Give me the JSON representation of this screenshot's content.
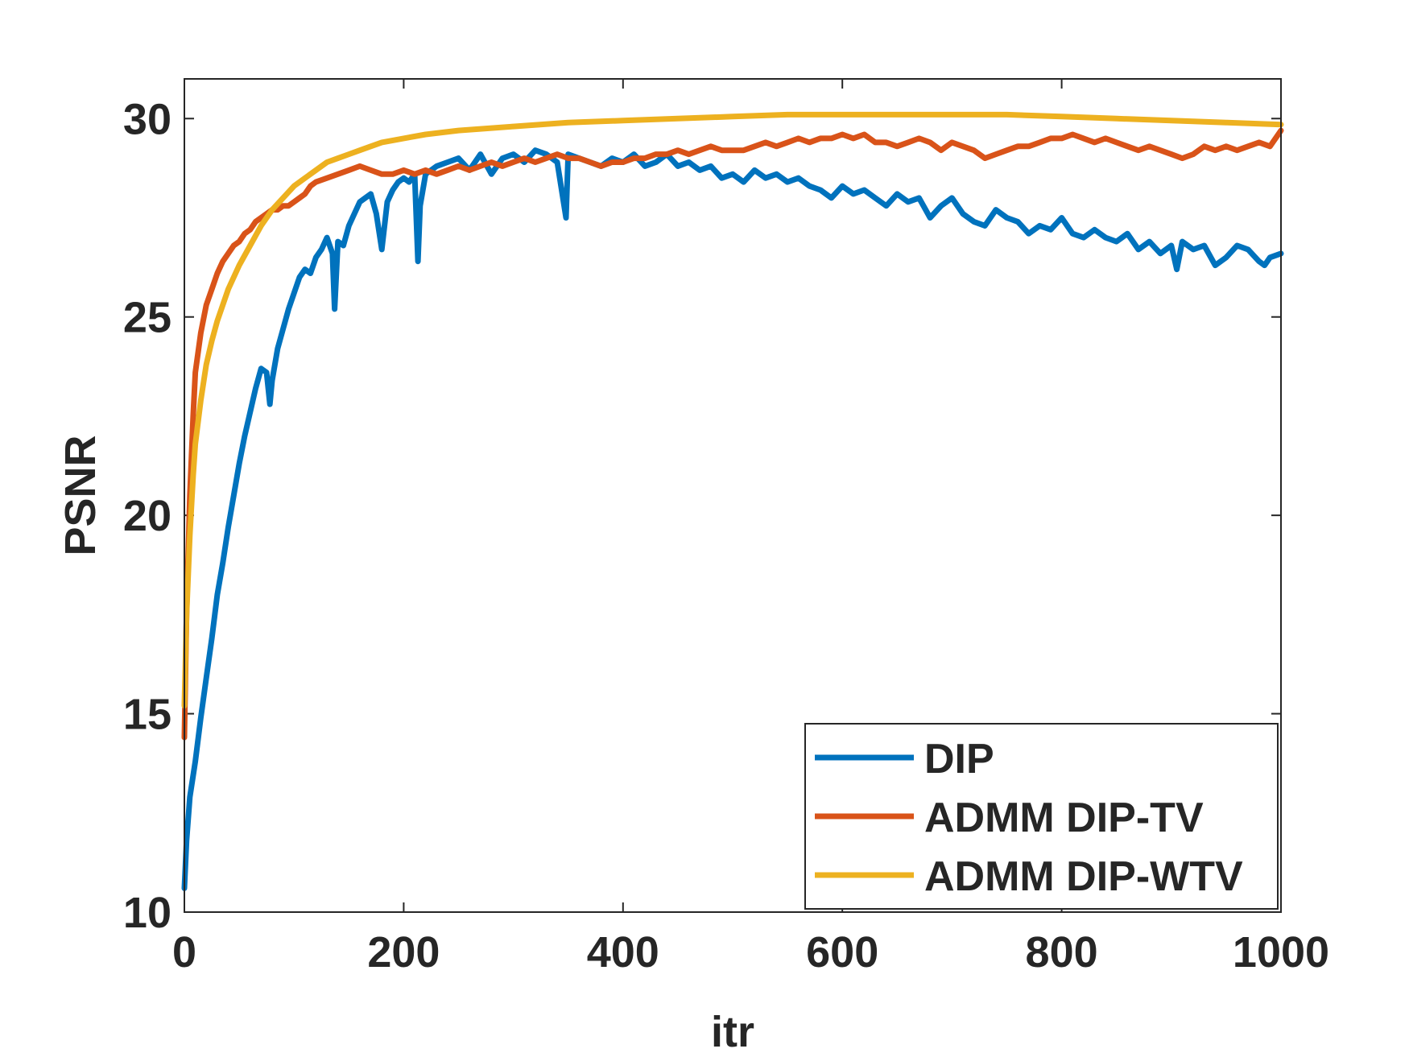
{
  "chart_data": {
    "type": "line",
    "title": "",
    "xlabel": "itr",
    "ylabel": "PSNR",
    "xlim": [
      0,
      1000
    ],
    "ylim": [
      10,
      31
    ],
    "xticks": [
      0,
      200,
      400,
      600,
      800,
      1000
    ],
    "xtick_labels": [
      "0",
      "200",
      "400",
      "600",
      "800",
      "1000"
    ],
    "yticks": [
      10,
      15,
      20,
      25,
      30
    ],
    "ytick_labels": [
      "10",
      "15",
      "20",
      "25",
      "30"
    ],
    "grid": false,
    "legend_position": "bottom-right",
    "series": [
      {
        "name": "DIP",
        "color": "#0072BD",
        "x": [
          0,
          2,
          5,
          10,
          15,
          20,
          25,
          30,
          35,
          40,
          45,
          50,
          55,
          60,
          65,
          70,
          75,
          78,
          80,
          85,
          90,
          95,
          100,
          105,
          110,
          115,
          120,
          125,
          130,
          135,
          137,
          140,
          145,
          150,
          155,
          160,
          165,
          170,
          175,
          180,
          185,
          190,
          195,
          200,
          205,
          210,
          213,
          215,
          220,
          225,
          230,
          240,
          250,
          260,
          270,
          280,
          290,
          300,
          310,
          320,
          330,
          340,
          348,
          350,
          360,
          370,
          380,
          390,
          400,
          410,
          420,
          430,
          440,
          450,
          460,
          470,
          480,
          490,
          500,
          510,
          520,
          530,
          540,
          550,
          560,
          570,
          580,
          590,
          600,
          610,
          620,
          630,
          640,
          650,
          660,
          670,
          680,
          690,
          700,
          710,
          720,
          730,
          740,
          750,
          760,
          770,
          780,
          790,
          800,
          810,
          820,
          830,
          840,
          850,
          860,
          870,
          880,
          890,
          900,
          905,
          910,
          920,
          930,
          940,
          950,
          960,
          970,
          980,
          985,
          990,
          1000
        ],
        "y": [
          10.6,
          11.8,
          12.9,
          13.8,
          14.9,
          15.9,
          16.9,
          18.0,
          18.8,
          19.7,
          20.5,
          21.3,
          22.0,
          22.6,
          23.2,
          23.7,
          23.6,
          22.8,
          23.4,
          24.2,
          24.7,
          25.2,
          25.6,
          26.0,
          26.2,
          26.1,
          26.5,
          26.7,
          27.0,
          26.6,
          25.2,
          26.9,
          26.8,
          27.3,
          27.6,
          27.9,
          28.0,
          28.1,
          27.6,
          26.7,
          27.9,
          28.2,
          28.4,
          28.5,
          28.4,
          28.6,
          26.4,
          27.8,
          28.6,
          28.7,
          28.8,
          28.9,
          29.0,
          28.7,
          29.1,
          28.6,
          29.0,
          29.1,
          28.9,
          29.2,
          29.1,
          28.9,
          27.5,
          29.1,
          29.0,
          28.9,
          28.8,
          29.0,
          28.9,
          29.1,
          28.8,
          28.9,
          29.1,
          28.8,
          28.9,
          28.7,
          28.8,
          28.5,
          28.6,
          28.4,
          28.7,
          28.5,
          28.6,
          28.4,
          28.5,
          28.3,
          28.2,
          28.0,
          28.3,
          28.1,
          28.2,
          28.0,
          27.8,
          28.1,
          27.9,
          28.0,
          27.5,
          27.8,
          28.0,
          27.6,
          27.4,
          27.3,
          27.7,
          27.5,
          27.4,
          27.1,
          27.3,
          27.2,
          27.5,
          27.1,
          27.0,
          27.2,
          27.0,
          26.9,
          27.1,
          26.7,
          26.9,
          26.6,
          26.8,
          26.2,
          26.9,
          26.7,
          26.8,
          26.3,
          26.5,
          26.8,
          26.7,
          26.4,
          26.3,
          26.5,
          26.6
        ]
      },
      {
        "name": "ADMM DIP-TV",
        "color": "#D95319",
        "x": [
          0,
          2,
          5,
          8,
          10,
          15,
          20,
          25,
          30,
          35,
          40,
          45,
          50,
          55,
          60,
          65,
          70,
          75,
          80,
          85,
          90,
          95,
          100,
          105,
          110,
          115,
          120,
          130,
          140,
          150,
          160,
          170,
          180,
          190,
          200,
          210,
          220,
          230,
          240,
          250,
          260,
          270,
          280,
          290,
          300,
          310,
          320,
          330,
          340,
          350,
          360,
          370,
          380,
          390,
          400,
          410,
          420,
          430,
          440,
          450,
          460,
          470,
          480,
          490,
          500,
          510,
          520,
          530,
          540,
          550,
          560,
          570,
          580,
          590,
          600,
          610,
          620,
          630,
          640,
          650,
          660,
          670,
          680,
          690,
          700,
          710,
          720,
          730,
          740,
          750,
          760,
          770,
          780,
          790,
          800,
          810,
          820,
          830,
          840,
          850,
          860,
          870,
          880,
          890,
          900,
          910,
          920,
          930,
          940,
          950,
          960,
          970,
          980,
          990,
          1000
        ],
        "y": [
          14.4,
          17.5,
          20.5,
          22.5,
          23.6,
          24.6,
          25.3,
          25.7,
          26.1,
          26.4,
          26.6,
          26.8,
          26.9,
          27.1,
          27.2,
          27.4,
          27.5,
          27.6,
          27.7,
          27.7,
          27.8,
          27.8,
          27.9,
          28.0,
          28.1,
          28.3,
          28.4,
          28.5,
          28.6,
          28.7,
          28.8,
          28.7,
          28.6,
          28.6,
          28.7,
          28.6,
          28.7,
          28.6,
          28.7,
          28.8,
          28.7,
          28.8,
          28.9,
          28.8,
          28.9,
          29.0,
          28.9,
          29.0,
          29.1,
          29.0,
          29.0,
          28.9,
          28.8,
          28.9,
          28.9,
          29.0,
          29.0,
          29.1,
          29.1,
          29.2,
          29.1,
          29.2,
          29.3,
          29.2,
          29.2,
          29.2,
          29.3,
          29.4,
          29.3,
          29.4,
          29.5,
          29.4,
          29.5,
          29.5,
          29.6,
          29.5,
          29.6,
          29.4,
          29.4,
          29.3,
          29.4,
          29.5,
          29.4,
          29.2,
          29.4,
          29.3,
          29.2,
          29.0,
          29.1,
          29.2,
          29.3,
          29.3,
          29.4,
          29.5,
          29.5,
          29.6,
          29.5,
          29.4,
          29.5,
          29.4,
          29.3,
          29.2,
          29.3,
          29.2,
          29.1,
          29.0,
          29.1,
          29.3,
          29.2,
          29.3,
          29.2,
          29.3,
          29.4,
          29.3,
          29.7
        ]
      },
      {
        "name": "ADMM DIP-WTV",
        "color": "#EDB120",
        "x": [
          0,
          2,
          5,
          8,
          10,
          15,
          20,
          25,
          30,
          35,
          40,
          50,
          60,
          70,
          80,
          90,
          100,
          110,
          120,
          130,
          140,
          150,
          160,
          170,
          180,
          200,
          220,
          250,
          300,
          350,
          400,
          450,
          500,
          550,
          600,
          650,
          700,
          750,
          800,
          850,
          900,
          950,
          1000
        ],
        "y": [
          15.2,
          17.5,
          19.5,
          21.0,
          21.8,
          22.9,
          23.8,
          24.4,
          24.9,
          25.3,
          25.7,
          26.3,
          26.8,
          27.3,
          27.7,
          28.0,
          28.3,
          28.5,
          28.7,
          28.9,
          29.0,
          29.1,
          29.2,
          29.3,
          29.4,
          29.5,
          29.6,
          29.7,
          29.8,
          29.9,
          29.95,
          30.0,
          30.05,
          30.1,
          30.1,
          30.1,
          30.1,
          30.1,
          30.05,
          30.0,
          29.95,
          29.9,
          29.85
        ]
      }
    ]
  }
}
